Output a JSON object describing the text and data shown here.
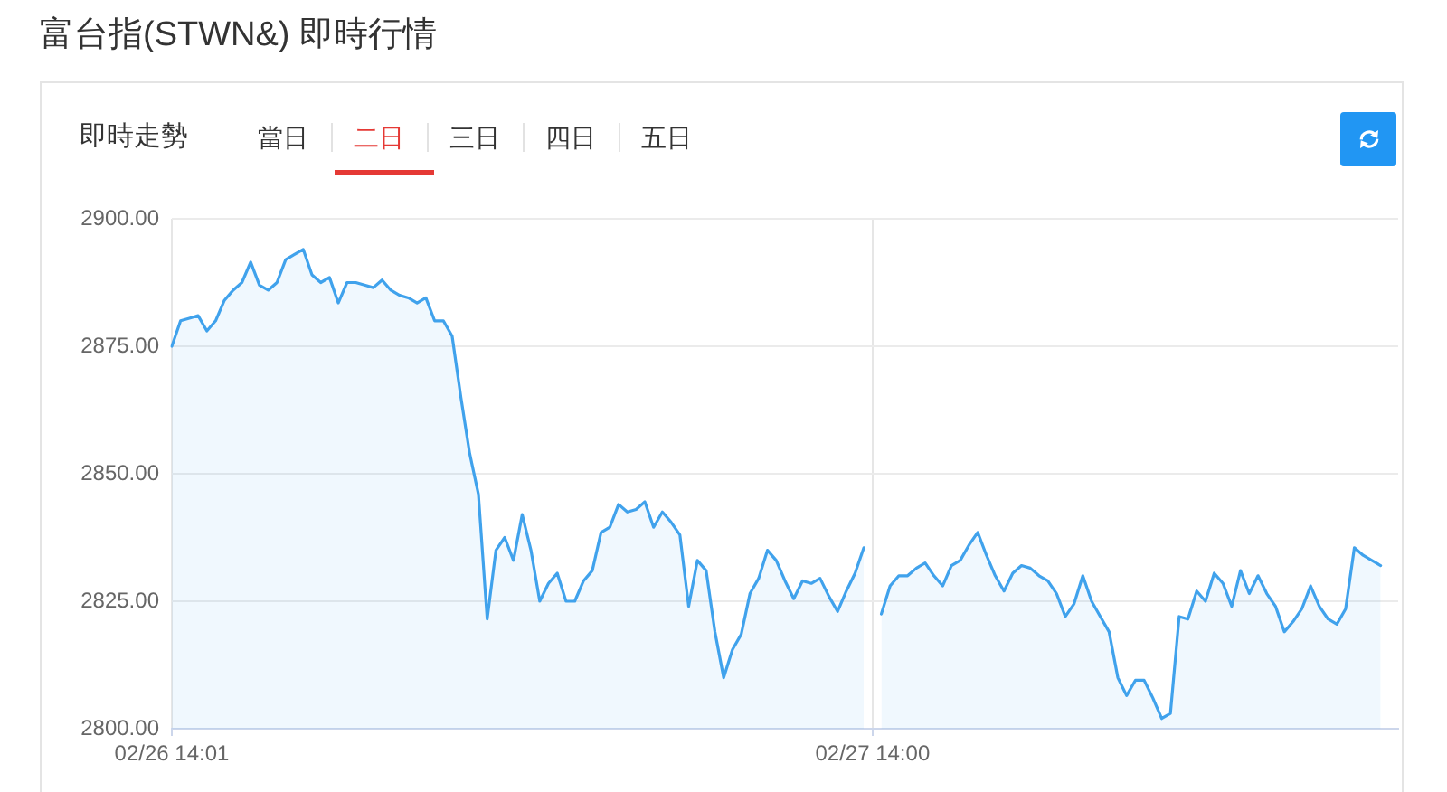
{
  "chart_data": {
    "type": "area",
    "title": "富台指(STWN&) 即時行情",
    "subtitle": "即時走勢",
    "annotations": [
      "當日",
      "二日",
      "三日",
      "四日",
      "五日"
    ],
    "categories": [
      "02/26 14:01",
      null,
      null,
      null,
      null,
      null,
      null,
      null,
      null,
      null,
      null,
      null,
      null,
      null,
      null,
      null,
      null,
      null,
      null,
      null,
      null,
      null,
      null,
      null,
      null,
      null,
      null,
      null,
      null,
      null,
      null,
      null,
      null,
      null,
      null,
      null,
      null,
      null,
      null,
      null,
      null,
      null,
      null,
      null,
      null,
      null,
      null,
      null,
      null,
      null,
      null,
      null,
      null,
      null,
      null,
      null,
      null,
      null,
      null,
      null,
      null,
      null,
      null,
      null,
      null,
      null,
      null,
      null,
      null,
      null,
      null,
      null,
      null,
      null,
      null,
      null,
      null,
      null,
      null,
      null,
      "02/27 14:00",
      null,
      null,
      null,
      null,
      null,
      null,
      null,
      null,
      null,
      null,
      null,
      null,
      null,
      null,
      null,
      null,
      null,
      null,
      null,
      null,
      null,
      null,
      null,
      null,
      null,
      null,
      null,
      null,
      null,
      null,
      null,
      null,
      null,
      null,
      null,
      null,
      null,
      null,
      null,
      null,
      null,
      null,
      null,
      null,
      null,
      null,
      null,
      null,
      null,
      null,
      null,
      null,
      null,
      null,
      null,
      null,
      null,
      null,
      null,
      null
    ],
    "series": [
      {
        "color": "#40a2ec",
        "values": [
          2875,
          2880,
          2880.5,
          2881,
          2878,
          2880,
          2884,
          2886,
          2887.5,
          2891.5,
          2887,
          2886,
          2887.5,
          2892,
          2893,
          2894,
          2889,
          2887.5,
          2888.5,
          2883.5,
          2887.5,
          2887.5,
          2887,
          2886.5,
          2888,
          2886,
          2885,
          2884.5,
          2883.5,
          2884.5,
          2880,
          2880,
          2877,
          2865,
          2854,
          2846,
          2821.5,
          2835,
          2837.5,
          2833,
          2842,
          2835,
          2825,
          2828.5,
          2830.5,
          2825,
          2825,
          2829,
          2831,
          2838.5,
          2839.5,
          2844,
          2842.5,
          2843,
          2844.5,
          2839.5,
          2842.5,
          2840.5,
          2838,
          2824,
          2833,
          2831,
          2819,
          2810,
          2815.5,
          2818.5,
          2826.5,
          2829.5,
          2835,
          2833,
          2829,
          2825.5,
          2829,
          2828.5,
          2829.5,
          2826,
          2823,
          2827,
          2830.5,
          2835.5,
          null,
          2822.5,
          2828,
          2830,
          2830,
          2831.5,
          2832.5,
          2830,
          2828,
          2832,
          2833,
          2836,
          2838.5,
          2834,
          2830,
          2827,
          2830.5,
          2832,
          2831.5,
          2830,
          2829,
          2826.5,
          2822,
          2824.5,
          2830,
          2825,
          2822,
          2819,
          2810,
          2806.5,
          2809.5,
          2809.5,
          2806,
          2802,
          2803,
          2822,
          2821.5,
          2827,
          2825,
          2830.5,
          2828.5,
          2824,
          2831,
          2826.5,
          2830,
          2826.5,
          2824,
          2819,
          2821,
          2823.5,
          2828,
          2824,
          2821.5,
          2820.5,
          2823.5,
          2835.5,
          2834,
          2833,
          2832,
          null,
          null
        ]
      }
    ],
    "ylim": [
      2800,
      2900
    ],
    "yticks": [
      {
        "value": 2800,
        "label": "2800.00"
      },
      {
        "value": 2825,
        "label": "2825.00"
      },
      {
        "value": 2850,
        "label": "2850.00"
      },
      {
        "value": 2875,
        "label": "2875.00"
      },
      {
        "value": 2900,
        "label": "2900.00"
      }
    ],
    "grid": true,
    "marker": "none"
  }
}
